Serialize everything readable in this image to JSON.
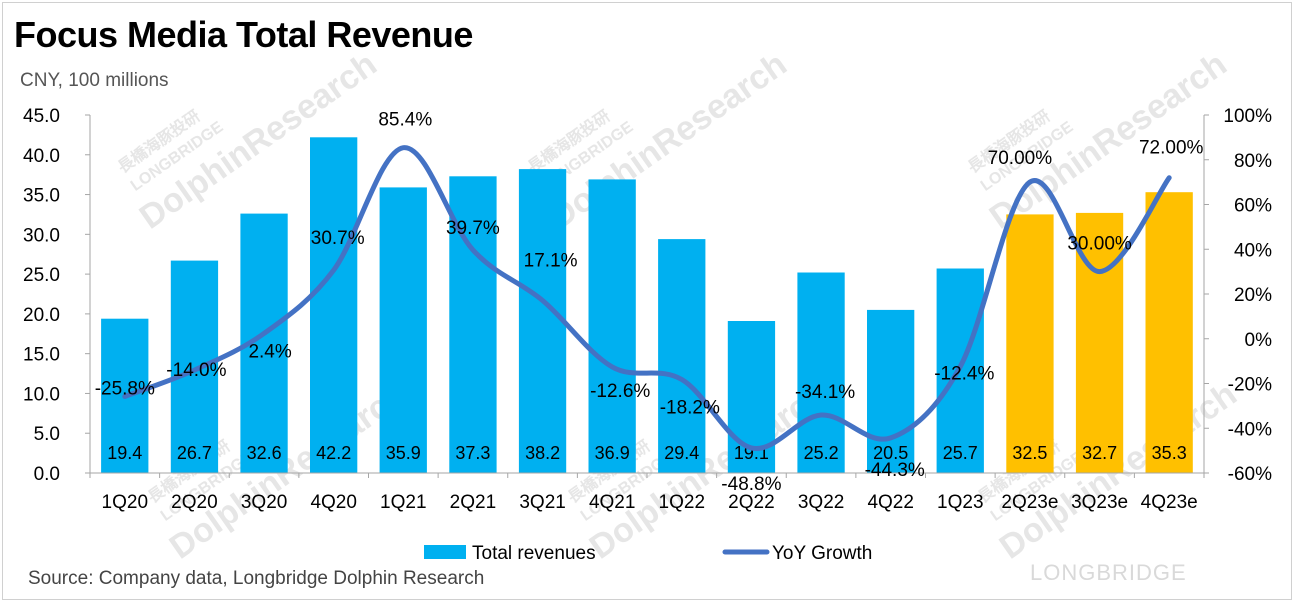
{
  "title": "Focus Media Total Revenue",
  "subtitle": "CNY, 100 millions",
  "source": "Source: Company data, Longbridge Dolphin Research",
  "watermark": {
    "brand": "LONGBRIDGE",
    "text": "DolphinResearch",
    "sub": "LONGBRIDGE",
    "cn": "長橋海豚投研"
  },
  "colors": {
    "bar_actual": "#00B0F0",
    "bar_estimate": "#FFC000",
    "line": "#4472C4",
    "axis": "#a6a6a6"
  },
  "legend": {
    "bars": "Total revenues",
    "line": "YoY Growth"
  },
  "chart_data": {
    "type": "bar",
    "title": "Focus Media Total Revenue",
    "subtitle": "CNY, 100 millions",
    "categories": [
      "1Q20",
      "2Q20",
      "3Q20",
      "4Q20",
      "1Q21",
      "2Q21",
      "3Q21",
      "4Q21",
      "1Q22",
      "2Q22",
      "3Q22",
      "4Q22",
      "1Q23",
      "2Q23e",
      "3Q23e",
      "4Q23e"
    ],
    "estimate_flags": [
      false,
      false,
      false,
      false,
      false,
      false,
      false,
      false,
      false,
      false,
      false,
      false,
      false,
      true,
      true,
      true
    ],
    "series": [
      {
        "name": "Total revenues",
        "type": "bar",
        "axis": "left",
        "values": [
          19.4,
          26.7,
          32.6,
          42.2,
          35.9,
          37.3,
          38.2,
          36.9,
          29.4,
          19.1,
          25.2,
          20.5,
          25.7,
          32.5,
          32.7,
          35.3
        ],
        "labels": [
          "19.4",
          "26.7",
          "32.6",
          "42.2",
          "35.9",
          "37.3",
          "38.2",
          "36.9",
          "29.4",
          "19.1",
          "25.2",
          "20.5",
          "25.7",
          "32.5",
          "32.7",
          "35.3"
        ]
      },
      {
        "name": "YoY Growth",
        "type": "line",
        "axis": "right",
        "values": [
          -25.8,
          -14.0,
          2.4,
          30.7,
          85.4,
          39.7,
          17.1,
          -12.6,
          -18.2,
          -48.8,
          -34.1,
          -44.3,
          -12.4,
          70.0,
          30.0,
          72.0
        ],
        "labels": [
          "-25.8%",
          "-14.0%",
          "2.4%",
          "30.7%",
          "85.4%",
          "39.7%",
          "17.1%",
          "-12.6%",
          "-18.2%",
          "-48.8%",
          "-34.1%",
          "-44.3%",
          "-12.4%",
          "70.00%",
          "30.00%",
          "72.00%"
        ]
      }
    ],
    "left_axis": {
      "min": 0,
      "max": 45,
      "step": 5,
      "tick_labels": [
        "0.0",
        "5.0",
        "10.0",
        "15.0",
        "20.0",
        "25.0",
        "30.0",
        "35.0",
        "40.0",
        "45.0"
      ]
    },
    "right_axis": {
      "min": -60,
      "max": 100,
      "step": 20,
      "tick_labels": [
        "-60%",
        "-40%",
        "-20%",
        "0%",
        "20%",
        "40%",
        "60%",
        "80%",
        "100%"
      ]
    },
    "grid": false,
    "legend_position": "bottom"
  }
}
